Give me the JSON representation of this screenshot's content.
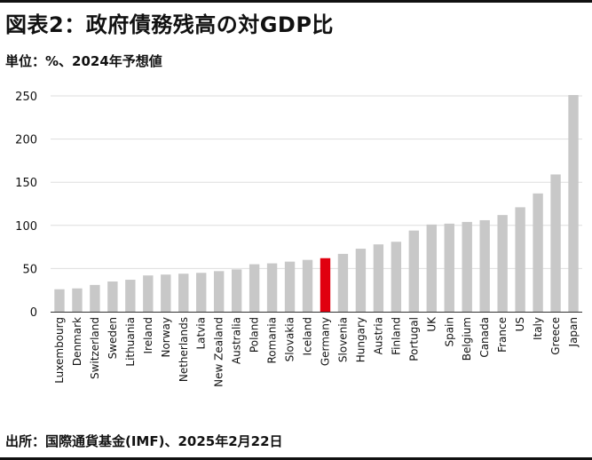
{
  "title": "図表2：政府債務残高の対GDP比",
  "subtitle": "単位：%、2024年予想値",
  "source": "出所：国際通貨基金(IMF)、2025年2月22日",
  "colors": {
    "bar": "#c8c8c8",
    "highlight": "#e0000f",
    "grid": "#dddddd",
    "axis": "#333333"
  },
  "chart_data": {
    "type": "bar",
    "categories": [
      "Luxembourg",
      "Denmark",
      "Switzerland",
      "Sweden",
      "Lithuania",
      "Ireland",
      "Norway",
      "Netherlands",
      "Latvia",
      "New Zealand",
      "Australia",
      "Poland",
      "Romania",
      "Slovakia",
      "Iceland",
      "Germany",
      "Slovenia",
      "Hungary",
      "Austria",
      "Finland",
      "Portugal",
      "UK",
      "Spain",
      "Belgium",
      "Canada",
      "France",
      "US",
      "Italy",
      "Greece",
      "Japan"
    ],
    "values": [
      26,
      27,
      31,
      35,
      37,
      42,
      43,
      44,
      45,
      47,
      49,
      55,
      56,
      58,
      60,
      62,
      67,
      73,
      78,
      81,
      94,
      101,
      102,
      104,
      106,
      112,
      121,
      137,
      159,
      251
    ],
    "highlight": "Germany",
    "ylim": [
      0,
      250
    ],
    "yticks": [
      0,
      50,
      100,
      150,
      200,
      250
    ],
    "grid": true,
    "xlabel": "",
    "ylabel": ""
  }
}
